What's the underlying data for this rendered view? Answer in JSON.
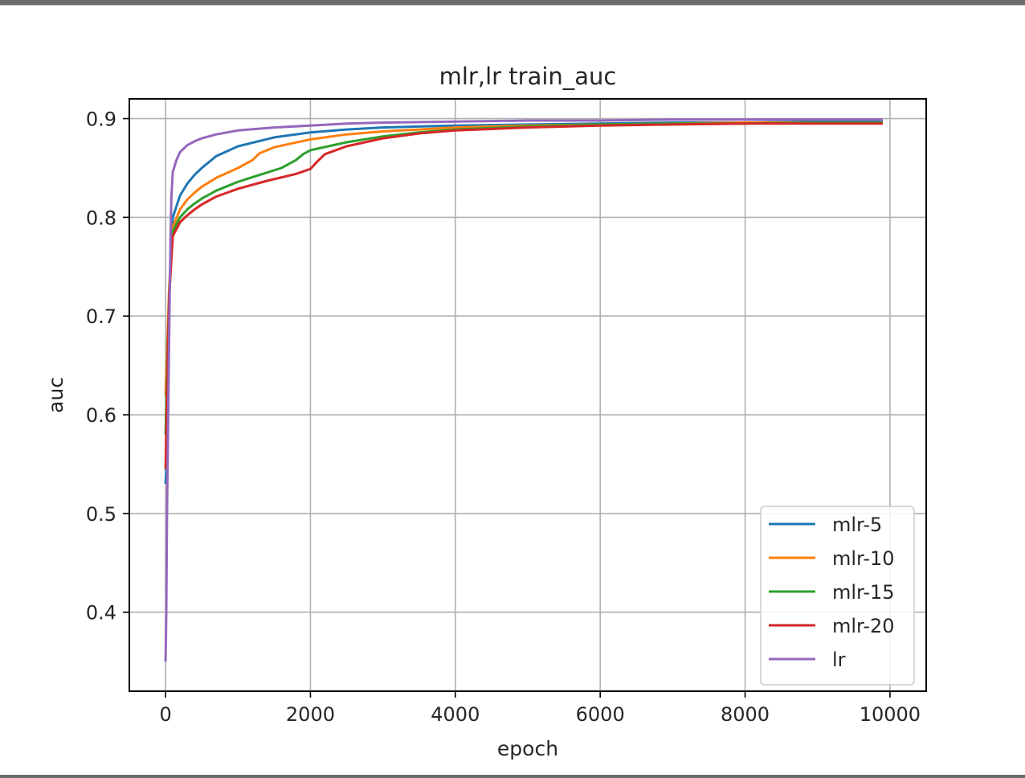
{
  "chart_data": {
    "type": "line",
    "title": "mlr,lr train_auc",
    "xlabel": "epoch",
    "ylabel": "auc",
    "xlim": [
      -500,
      10500
    ],
    "ylim": [
      0.32,
      0.92
    ],
    "xticks": [
      0,
      2000,
      4000,
      6000,
      8000,
      10000
    ],
    "xtick_labels": [
      "0",
      "2000",
      "4000",
      "6000",
      "8000",
      "10000"
    ],
    "yticks": [
      0.4,
      0.5,
      0.6,
      0.7,
      0.8,
      0.9
    ],
    "ytick_labels": [
      "0.4",
      "0.5",
      "0.6",
      "0.7",
      "0.8",
      "0.9"
    ],
    "grid": true,
    "legend_position": "lower right",
    "series": [
      {
        "name": "mlr-5",
        "color": "#1f77b4",
        "x": [
          0,
          20,
          50,
          100,
          200,
          300,
          400,
          500,
          700,
          1000,
          1500,
          2000,
          2500,
          3000,
          3500,
          4000,
          5000,
          6000,
          7000,
          8000,
          9000,
          9900
        ],
        "y": [
          0.53,
          0.56,
          0.72,
          0.8,
          0.822,
          0.834,
          0.843,
          0.85,
          0.862,
          0.872,
          0.881,
          0.886,
          0.889,
          0.891,
          0.892,
          0.893,
          0.894,
          0.895,
          0.896,
          0.896,
          0.897,
          0.897
        ]
      },
      {
        "name": "mlr-10",
        "color": "#ff7f0e",
        "x": [
          0,
          20,
          50,
          100,
          200,
          300,
          400,
          500,
          700,
          1000,
          1200,
          1300,
          1500,
          2000,
          2500,
          3000,
          3500,
          4000,
          5000,
          6000,
          7000,
          8000,
          9000,
          9900
        ],
        "y": [
          0.62,
          0.66,
          0.73,
          0.79,
          0.808,
          0.818,
          0.825,
          0.831,
          0.84,
          0.85,
          0.858,
          0.865,
          0.871,
          0.879,
          0.884,
          0.887,
          0.889,
          0.891,
          0.893,
          0.894,
          0.895,
          0.896,
          0.896,
          0.896
        ]
      },
      {
        "name": "mlr-15",
        "color": "#2ca02c",
        "x": [
          0,
          20,
          50,
          100,
          200,
          300,
          400,
          500,
          700,
          1000,
          1300,
          1600,
          1800,
          1900,
          2000,
          2500,
          3000,
          3500,
          4000,
          5000,
          6000,
          7000,
          8000,
          9000,
          9900
        ],
        "y": [
          0.58,
          0.64,
          0.72,
          0.786,
          0.8,
          0.808,
          0.814,
          0.819,
          0.827,
          0.836,
          0.843,
          0.85,
          0.858,
          0.864,
          0.868,
          0.876,
          0.882,
          0.886,
          0.889,
          0.892,
          0.894,
          0.895,
          0.895,
          0.896,
          0.896
        ]
      },
      {
        "name": "mlr-20",
        "color": "#d62728",
        "x": [
          0,
          20,
          50,
          100,
          200,
          300,
          400,
          500,
          700,
          1000,
          1400,
          1800,
          2000,
          2100,
          2200,
          2500,
          3000,
          3500,
          4000,
          5000,
          6000,
          7000,
          8000,
          9000,
          9900
        ],
        "y": [
          0.545,
          0.62,
          0.72,
          0.781,
          0.795,
          0.802,
          0.808,
          0.813,
          0.821,
          0.829,
          0.837,
          0.844,
          0.849,
          0.857,
          0.864,
          0.872,
          0.88,
          0.885,
          0.888,
          0.891,
          0.893,
          0.894,
          0.895,
          0.895,
          0.895
        ]
      },
      {
        "name": "lr",
        "color": "#9467bd",
        "x": [
          0,
          10,
          20,
          40,
          60,
          80,
          100,
          150,
          200,
          300,
          400,
          500,
          700,
          1000,
          1500,
          2000,
          2500,
          3000,
          4000,
          5000,
          6000,
          7000,
          8000,
          9000,
          9900
        ],
        "y": [
          0.35,
          0.4,
          0.5,
          0.62,
          0.74,
          0.82,
          0.846,
          0.858,
          0.866,
          0.873,
          0.877,
          0.88,
          0.884,
          0.888,
          0.891,
          0.893,
          0.895,
          0.896,
          0.897,
          0.898,
          0.898,
          0.899,
          0.899,
          0.899,
          0.899
        ]
      }
    ]
  }
}
